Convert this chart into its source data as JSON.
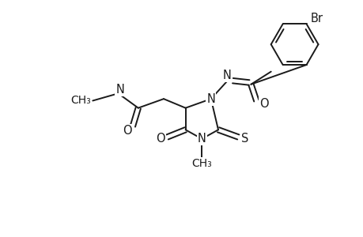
{
  "bg_color": "#ffffff",
  "line_color": "#1a1a1a",
  "line_width": 1.4,
  "font_size": 10.5,
  "fig_w": 4.6,
  "fig_h": 3.0,
  "dpi": 100,
  "xlim": [
    0,
    10
  ],
  "ylim": [
    0,
    6.52
  ]
}
